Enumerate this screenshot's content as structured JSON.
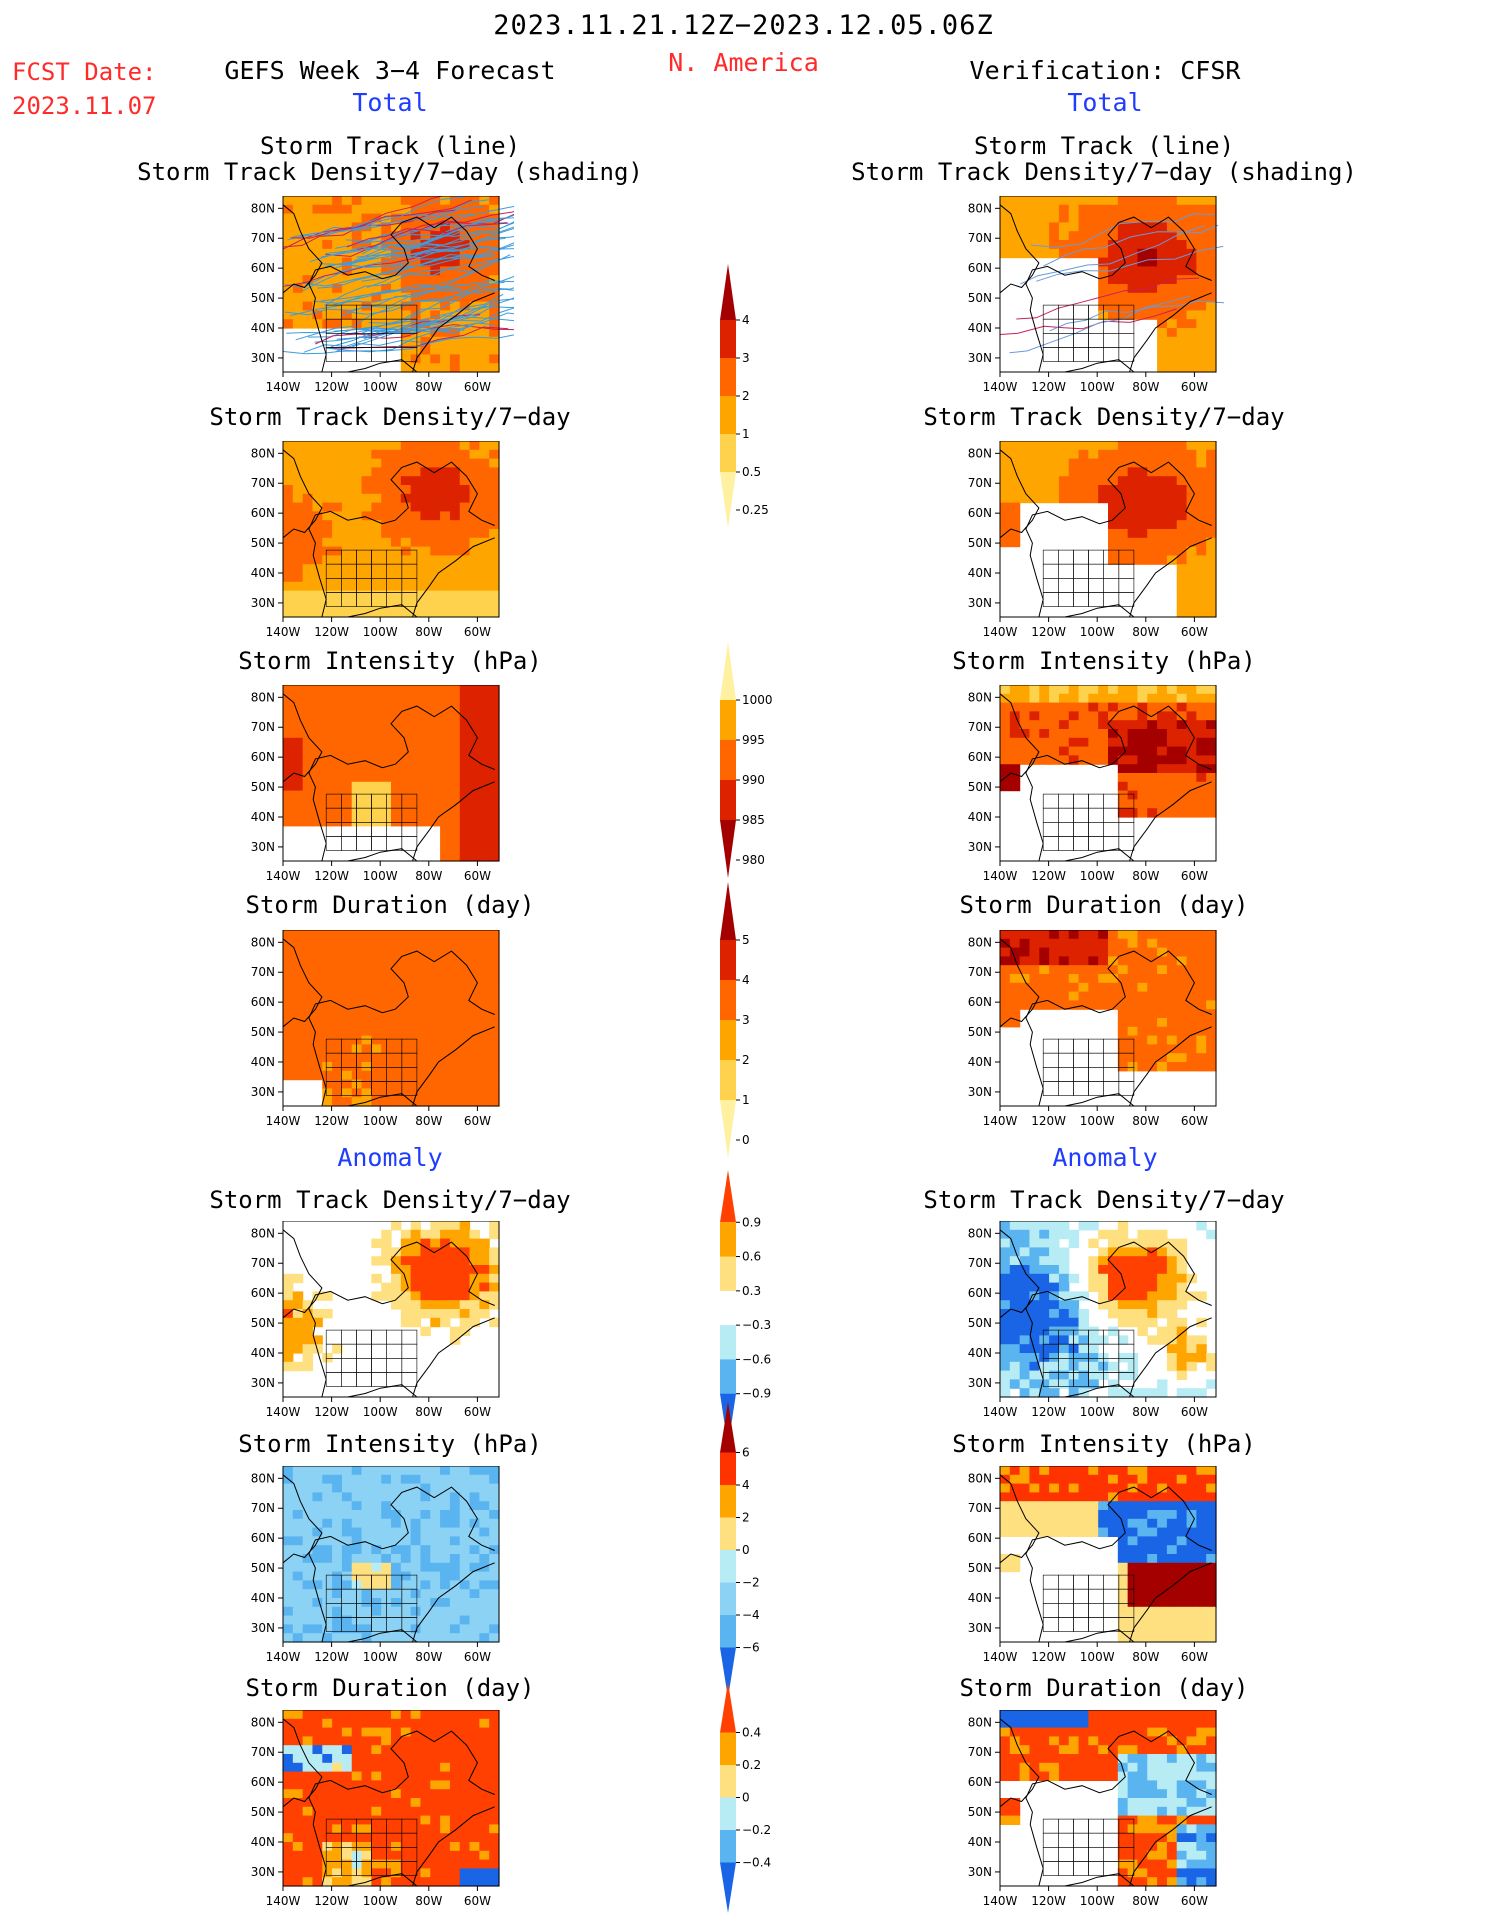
{
  "header": {
    "date_range": "2023.11.21.12Z−2023.12.05.06Z",
    "region": "N. America",
    "fcst_label": "FCST Date:",
    "fcst_date": "2023.11.07"
  },
  "left_column": {
    "title": "GEFS Week 3−4 Forecast",
    "total_label": "Total",
    "anomaly_label": "Anomaly"
  },
  "right_column": {
    "title": "Verification: CFSR",
    "total_label": "Total",
    "anomaly_label": "Anomaly"
  },
  "panel_titles": {
    "track_line": "Storm Track (line)",
    "track_shading": "Storm Track Density/7−day (shading)",
    "density": "Storm Track Density/7−day",
    "intensity": "Storm Intensity (hPa)",
    "duration": "Storm Duration (day)"
  },
  "axis": {
    "lat_labels": [
      "80N",
      "70N",
      "60N",
      "50N",
      "40N",
      "30N"
    ],
    "lon_labels": [
      "140W",
      "120W",
      "100W",
      "80W",
      "60W"
    ]
  },
  "colorbars": [
    {
      "id": "density_total",
      "labels": [
        "4",
        "3",
        "2",
        "1",
        "0.5",
        "0.25"
      ],
      "colors": [
        "#a50000",
        "#dd2200",
        "#ff6600",
        "#ffa500",
        "#ffd24d",
        "#fff1a0"
      ]
    },
    {
      "id": "intensity_total",
      "labels": [
        "1000",
        "995",
        "990",
        "985",
        "980"
      ],
      "colors": [
        "#fff1a0",
        "#ffa500",
        "#ff6600",
        "#dd2200",
        "#a50000"
      ]
    },
    {
      "id": "duration_total",
      "labels": [
        "5",
        "4",
        "3",
        "2",
        "1",
        "0"
      ],
      "colors": [
        "#a50000",
        "#dd2200",
        "#ff6600",
        "#ffa500",
        "#ffd24d",
        "#fff1a0"
      ]
    },
    {
      "id": "density_anom",
      "labels": [
        "0.9",
        "0.6",
        "0.3",
        "−0.3",
        "−0.6",
        "−0.9"
      ],
      "colors": [
        "#ff4000",
        "#ffa500",
        "#ffe080",
        "#ffffff",
        "#b8ecf5",
        "#5ab4f0",
        "#1a64e6"
      ]
    },
    {
      "id": "intensity_anom",
      "labels": [
        "6",
        "4",
        "2",
        "0",
        "−2",
        "−4",
        "−6"
      ],
      "colors": [
        "#a50000",
        "#ff3300",
        "#ffa500",
        "#ffe080",
        "#b8ecf5",
        "#8cd2f5",
        "#5ab4f0",
        "#1a64e6"
      ]
    },
    {
      "id": "duration_anom",
      "labels": [
        "0.4",
        "0.2",
        "0",
        "−0.2",
        "−0.4"
      ],
      "colors": [
        "#ff4000",
        "#ffa500",
        "#ffe080",
        "#b8ecf5",
        "#5ab4f0",
        "#1a64e6"
      ]
    }
  ],
  "palette": {
    "warm": [
      "#fff1a0",
      "#ffd24d",
      "#ffa500",
      "#ff6600",
      "#dd2200",
      "#a50000"
    ],
    "cool": [
      "#b8ecf5",
      "#5ab4f0",
      "#1a64e6"
    ],
    "track_line_gefs": "#3a9de0",
    "track_line_cfsr": "#6a9ad8",
    "track_highlight": "#c8205a"
  }
}
